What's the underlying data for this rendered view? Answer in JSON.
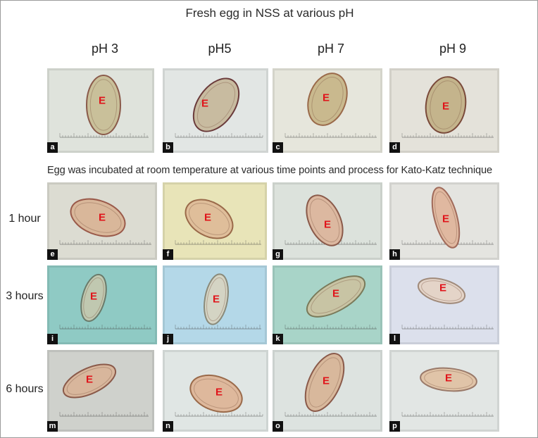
{
  "figure": {
    "fresh_title": "Fresh egg in NSS at various pH",
    "incubation_title": "Egg was incubated at room temperature at various time points and process for Kato-Katz technique",
    "columns": [
      "pH 3",
      "pH5",
      "pH 7",
      "pH 9"
    ],
    "rows": [
      "1 hour",
      "3 hours",
      "6 hours"
    ],
    "egg_label": "E"
  },
  "panels": [
    {
      "letter": "a",
      "bg": "#dfe3dc",
      "egg": "#c9c09a",
      "edge": "#8a5a4a"
    },
    {
      "letter": "b",
      "bg": "#e2e6e4",
      "egg": "#c8bba0",
      "edge": "#6a3a3a"
    },
    {
      "letter": "c",
      "bg": "#e6e6dc",
      "egg": "#c9b98e",
      "edge": "#9a6a4a"
    },
    {
      "letter": "d",
      "bg": "#e4e2da",
      "egg": "#c4b48c",
      "edge": "#7a4a3a"
    },
    {
      "letter": "e",
      "bg": "#dcdcd2",
      "egg": "#d9b79a",
      "edge": "#9a5a4a"
    },
    {
      "letter": "f",
      "bg": "#e8e4b8",
      "egg": "#dfbe9a",
      "edge": "#9a6a4a"
    },
    {
      "letter": "g",
      "bg": "#dce2dc",
      "egg": "#dcb8a0",
      "edge": "#8a5a4a"
    },
    {
      "letter": "h",
      "bg": "#e4e4e0",
      "egg": "#e0b8a0",
      "edge": "#a06a5a"
    },
    {
      "letter": "i",
      "bg": "#8fcac4",
      "egg": "#c0c8b0",
      "edge": "#6a7a6a"
    },
    {
      "letter": "j",
      "bg": "#b4d8e8",
      "egg": "#d4d4c4",
      "edge": "#8a8a7a"
    },
    {
      "letter": "k",
      "bg": "#a8d4c8",
      "egg": "#c8c4a4",
      "edge": "#7a7a5a"
    },
    {
      "letter": "l",
      "bg": "#dce0ec",
      "egg": "#e4d4c8",
      "edge": "#a08a7a"
    },
    {
      "letter": "m",
      "bg": "#cfd1cc",
      "egg": "#d8b69c",
      "edge": "#8a5a4a"
    },
    {
      "letter": "n",
      "bg": "#e0e6e4",
      "egg": "#deb89c",
      "edge": "#9a6a4a"
    },
    {
      "letter": "o",
      "bg": "#dde3e0",
      "egg": "#d8b89c",
      "edge": "#8a5a4a"
    },
    {
      "letter": "p",
      "bg": "#e2e6e4",
      "egg": "#e0c4a8",
      "edge": "#9a7a6a"
    }
  ]
}
